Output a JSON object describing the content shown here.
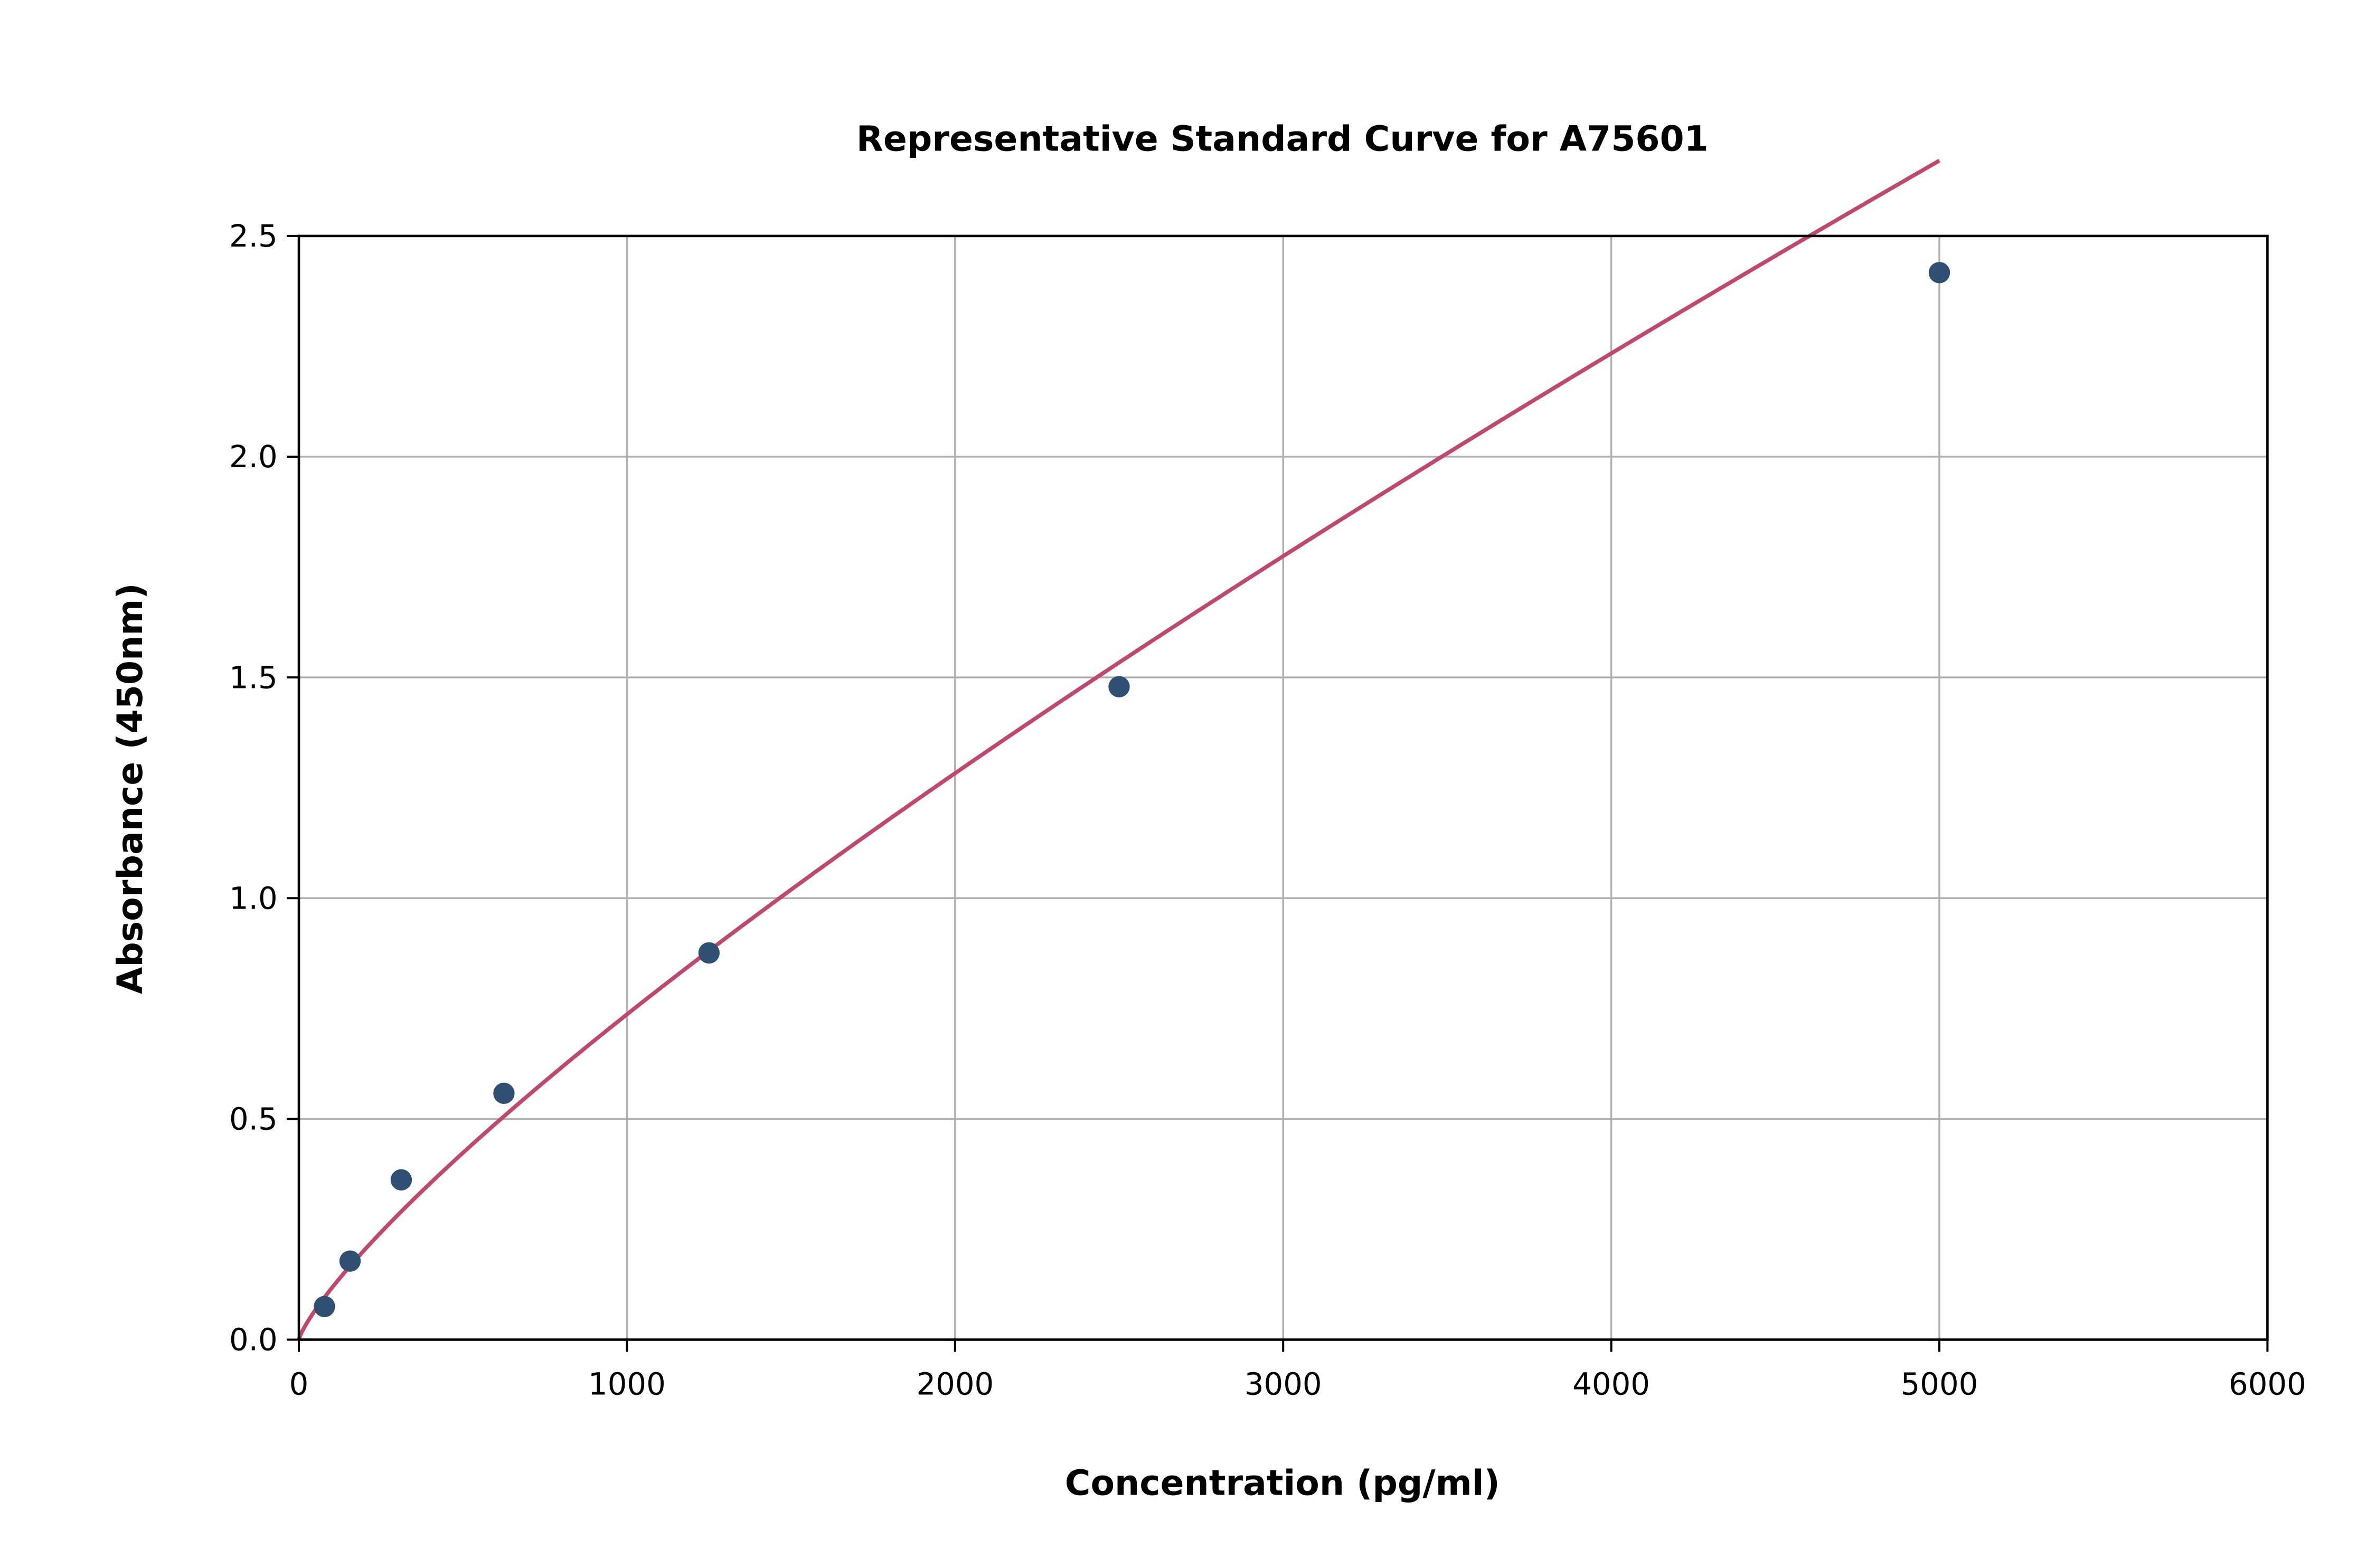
{
  "chart_data": {
    "type": "scatter",
    "title": "Representative Standard Curve for A75601",
    "xlabel": "Concentration (pg/ml)",
    "ylabel": "Absorbance (450nm)",
    "xlim": [
      0,
      6000
    ],
    "ylim": [
      0,
      2.5
    ],
    "xticks": [
      "0",
      "1000",
      "2000",
      "3000",
      "4000",
      "5000",
      "6000"
    ],
    "yticks": [
      "0.0",
      "0.5",
      "1.0",
      "1.5",
      "2.0",
      "2.5"
    ],
    "grid": true,
    "series": [
      {
        "x": [
          78,
          156,
          312,
          625,
          1250,
          2500,
          5000
        ],
        "y": [
          0.075,
          0.178,
          0.362,
          0.558,
          0.876,
          1.479,
          2.417
        ]
      }
    ],
    "fit_curve": true,
    "colors": {
      "points": "#2f4f73",
      "curve": "#c0476e",
      "grid": "#b0b0b0"
    }
  }
}
